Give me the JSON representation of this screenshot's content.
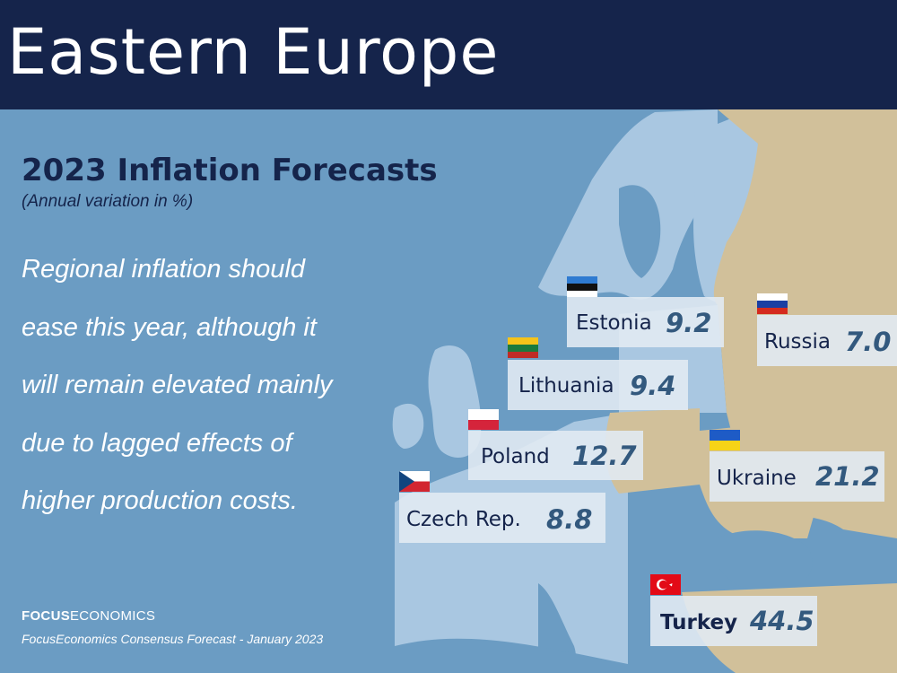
{
  "header": {
    "title": "Eastern Europe"
  },
  "subtitle": "2023 Inflation Forecasts",
  "units": "(Annual variation in %)",
  "note": {
    "lines": [
      "Regional inflation should",
      "ease this year, although it",
      "will remain elevated mainly",
      "due to lagged effects of",
      "higher production costs."
    ]
  },
  "brand": {
    "bold": "FOCUS",
    "regular": "ECONOMICS"
  },
  "source": "FocusEconomics Consensus Forecast - January 2023",
  "colors": {
    "header": "#15244b",
    "sea": "#6b9cc3",
    "europe_land": "#a9c7e1",
    "highlight_land": "#d1c09a",
    "value_text": "#33597e"
  },
  "countries": [
    {
      "name": "Estonia",
      "value": "9.2",
      "flag": "estonia-flag"
    },
    {
      "name": "Russia",
      "value": "7.0",
      "flag": "russia-flag"
    },
    {
      "name": "Lithuania",
      "value": "9.4",
      "flag": "lithuania-flag"
    },
    {
      "name": "Poland",
      "value": "12.7",
      "flag": "poland-flag"
    },
    {
      "name": "Ukraine",
      "value": "21.2",
      "flag": "ukraine-flag"
    },
    {
      "name": "Czech Rep.",
      "value": "8.8",
      "flag": "czech-flag"
    },
    {
      "name": "Turkey",
      "value": "44.5",
      "flag": "turkey-flag"
    }
  ]
}
